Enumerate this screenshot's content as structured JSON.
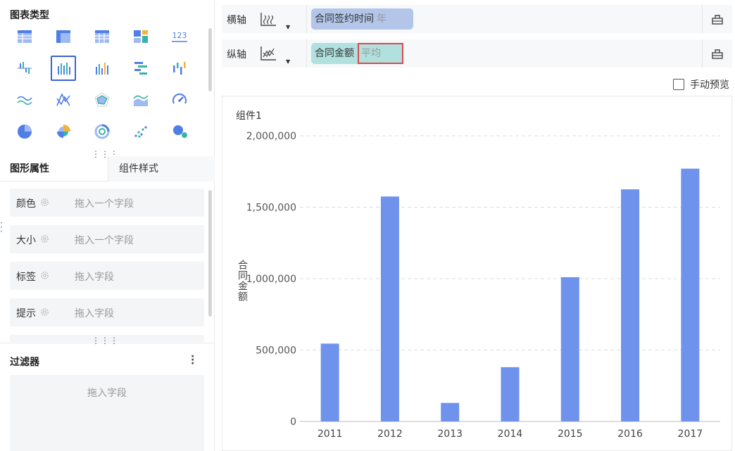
{
  "left": {
    "chart_type_title": "图表类型",
    "chart_types": [
      {
        "name": "table-chart-icon"
      },
      {
        "name": "pivot-table-icon"
      },
      {
        "name": "detail-table-icon"
      },
      {
        "name": "combo-block-icon"
      },
      {
        "name": "kpi-number-icon",
        "text": "123"
      },
      {
        "name": "grouped-bar-icon"
      },
      {
        "name": "column-chart-icon",
        "selected": true
      },
      {
        "name": "multi-column-icon"
      },
      {
        "name": "horizontal-bar-icon"
      },
      {
        "name": "range-column-icon"
      },
      {
        "name": "line-chart-icon"
      },
      {
        "name": "tangled-line-icon"
      },
      {
        "name": "radar-chart-icon"
      },
      {
        "name": "area-chart-icon"
      },
      {
        "name": "gauge-chart-icon"
      },
      {
        "name": "pie-chart-icon"
      },
      {
        "name": "rose-chart-icon"
      },
      {
        "name": "donut-chart-icon"
      },
      {
        "name": "scatter-chart-icon"
      },
      {
        "name": "bubble-chart-icon"
      }
    ],
    "tabs": [
      "图形属性",
      "组件样式"
    ],
    "props": [
      {
        "label": "颜色",
        "placeholder": "拖入一个字段"
      },
      {
        "label": "大小",
        "placeholder": "拖入一个字段"
      },
      {
        "label": "标签",
        "placeholder": "拖入字段"
      },
      {
        "label": "提示",
        "placeholder": "拖入字段"
      }
    ],
    "filter_title": "过滤器",
    "filter_placeholder": "拖入字段"
  },
  "axes": {
    "x": {
      "label": "横轴",
      "field": "合同签约时间",
      "sub": "年"
    },
    "y": {
      "label": "纵轴",
      "field": "合同金额",
      "sub": "平均"
    }
  },
  "preview_label": "手动预览",
  "component_title": "组件1",
  "colors": {
    "bar": "#6f93ec",
    "accent": "#3a62d6",
    "highlight": "#e0474c"
  },
  "chart_data": {
    "type": "bar",
    "categories": [
      "2011",
      "2012",
      "2013",
      "2014",
      "2015",
      "2016",
      "2017"
    ],
    "values": [
      545000,
      1575000,
      130000,
      380000,
      1010000,
      1625000,
      1770000
    ],
    "ylabel": "合同金额",
    "xlabel": "",
    "ylim": [
      0,
      2000000
    ],
    "yticks": [
      0,
      500000,
      1000000,
      1500000,
      2000000
    ],
    "ytick_labels": [
      "0",
      "500,000",
      "1,000,000",
      "1,500,000",
      "2,000,000"
    ],
    "grid": true
  }
}
